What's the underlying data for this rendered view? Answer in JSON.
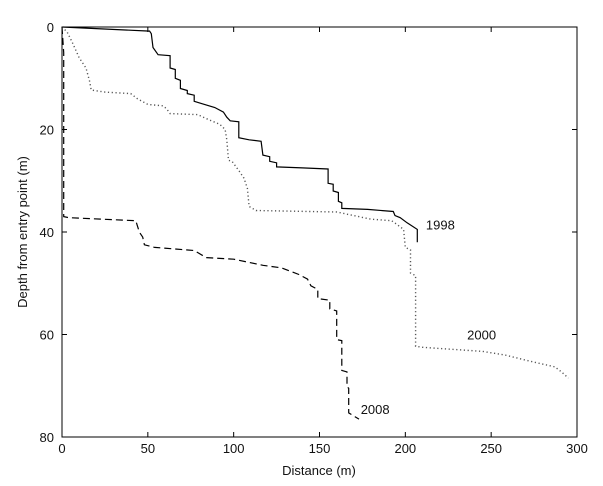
{
  "chart_data": {
    "type": "line",
    "xlabel": "Distance (m)",
    "ylabel": "Depth from entry point (m)",
    "xlim": [
      0,
      300
    ],
    "ylim": [
      0,
      80
    ],
    "y_inverted": true,
    "grid": false,
    "x_ticks": [
      "0",
      "50",
      "100",
      "150",
      "200",
      "250",
      "300"
    ],
    "y_ticks": [
      "0",
      "20",
      "40",
      "60",
      "80"
    ],
    "series": [
      {
        "name": "1998",
        "style": "solid",
        "color": "#000000",
        "points": [
          [
            0,
            0
          ],
          [
            51,
            0.8
          ],
          [
            52,
            1.3
          ],
          [
            53,
            4
          ],
          [
            56,
            5.4
          ],
          [
            63,
            5.6
          ],
          [
            63,
            8
          ],
          [
            66,
            8.3
          ],
          [
            66,
            10
          ],
          [
            69,
            10.4
          ],
          [
            69,
            12
          ],
          [
            73,
            12.4
          ],
          [
            73,
            13
          ],
          [
            77,
            13.3
          ],
          [
            77,
            14.5
          ],
          [
            82,
            15
          ],
          [
            89,
            15.7
          ],
          [
            94,
            16.6
          ],
          [
            96,
            17.6
          ],
          [
            98,
            18.3
          ],
          [
            103,
            18.5
          ],
          [
            103,
            21.6
          ],
          [
            109,
            22
          ],
          [
            116,
            22.3
          ],
          [
            117,
            25
          ],
          [
            121,
            25.3
          ],
          [
            121,
            26.2
          ],
          [
            125,
            26.5
          ],
          [
            125,
            27.3
          ],
          [
            140,
            27.5
          ],
          [
            155,
            27.7
          ],
          [
            155,
            30.5
          ],
          [
            158,
            30.7
          ],
          [
            158,
            32
          ],
          [
            161,
            32.3
          ],
          [
            161,
            34
          ],
          [
            163,
            34.3
          ],
          [
            163,
            35.4
          ],
          [
            178,
            35.6
          ],
          [
            193,
            36
          ],
          [
            194,
            36.8
          ],
          [
            197,
            37.2
          ],
          [
            201,
            38.2
          ],
          [
            207,
            39.5
          ],
          [
            207,
            42
          ]
        ]
      },
      {
        "name": "2000",
        "style": "dotted",
        "color": "#555555",
        "points": [
          [
            0,
            0
          ],
          [
            3,
            1
          ],
          [
            6,
            3
          ],
          [
            10,
            6
          ],
          [
            14,
            8
          ],
          [
            16,
            10.5
          ],
          [
            17,
            12.3
          ],
          [
            25,
            12.7
          ],
          [
            40,
            13
          ],
          [
            44,
            14
          ],
          [
            50,
            15.1
          ],
          [
            59,
            15.4
          ],
          [
            61,
            16
          ],
          [
            63,
            16.9
          ],
          [
            79,
            17.1
          ],
          [
            85,
            18
          ],
          [
            92,
            19
          ],
          [
            95,
            20
          ],
          [
            96,
            22
          ],
          [
            97,
            26
          ],
          [
            99,
            26.2
          ],
          [
            103,
            28
          ],
          [
            106,
            29.5
          ],
          [
            108,
            31.5
          ],
          [
            109,
            35
          ],
          [
            113,
            35.8
          ],
          [
            160,
            36.1
          ],
          [
            180,
            37.5
          ],
          [
            192,
            37.8
          ],
          [
            195,
            38.5
          ],
          [
            199,
            39.5
          ],
          [
            200,
            43
          ],
          [
            203,
            43.5
          ],
          [
            203,
            48
          ],
          [
            206,
            48.5
          ],
          [
            206,
            62.3
          ],
          [
            210,
            62.5
          ],
          [
            245,
            63.3
          ],
          [
            258,
            64
          ],
          [
            270,
            65
          ],
          [
            283,
            66
          ],
          [
            287,
            66.3
          ],
          [
            291,
            67.3
          ],
          [
            295,
            68.5
          ]
        ]
      },
      {
        "name": "2008",
        "style": "dashed",
        "color": "#000000",
        "points": [
          [
            0,
            0
          ],
          [
            1,
            5
          ],
          [
            1,
            37
          ],
          [
            4,
            37.2
          ],
          [
            43,
            37.8
          ],
          [
            45,
            40
          ],
          [
            47,
            41
          ],
          [
            48,
            42.5
          ],
          [
            54,
            43
          ],
          [
            77,
            43.6
          ],
          [
            84,
            45
          ],
          [
            100,
            45.3
          ],
          [
            117,
            46.5
          ],
          [
            128,
            47
          ],
          [
            138,
            48.3
          ],
          [
            143,
            49.2
          ],
          [
            145,
            50.5
          ],
          [
            149,
            51.2
          ],
          [
            149,
            53
          ],
          [
            156,
            53.3
          ],
          [
            156,
            55
          ],
          [
            160,
            55.4
          ],
          [
            160,
            61
          ],
          [
            163,
            61.2
          ],
          [
            163,
            67
          ],
          [
            166,
            67.3
          ],
          [
            166,
            70.2
          ],
          [
            167,
            70.5
          ],
          [
            167,
            75.3
          ],
          [
            173,
            76.5
          ]
        ]
      }
    ],
    "annotations": [
      {
        "text": "1998",
        "series": "1998",
        "at": [
          212,
          39.5
        ]
      },
      {
        "text": "2000",
        "series": "2000",
        "at": [
          236,
          61
        ]
      },
      {
        "text": "2008",
        "series": "2008",
        "at": [
          174,
          75.5
        ]
      }
    ]
  }
}
